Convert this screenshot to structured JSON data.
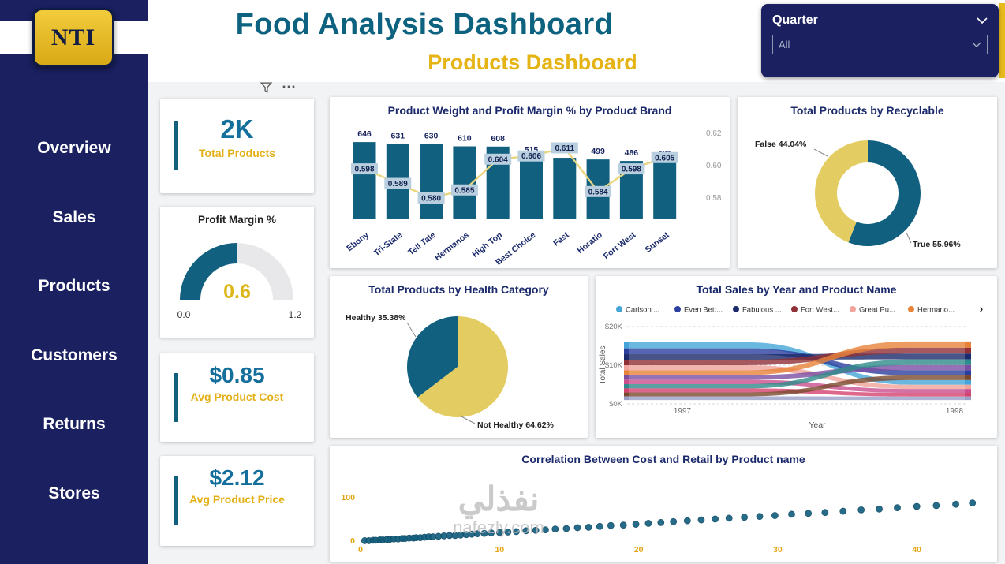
{
  "sidebar": {
    "logo_text": "NTI",
    "items": [
      {
        "label": "Overview"
      },
      {
        "label": "Sales"
      },
      {
        "label": "Products"
      },
      {
        "label": "Customers"
      },
      {
        "label": "Returns"
      },
      {
        "label": "Stores"
      }
    ]
  },
  "header": {
    "title": "Food Analysis Dashboard",
    "subtitle": "Products Dashboard"
  },
  "slicer": {
    "label": "Quarter",
    "value": "All"
  },
  "icons": {
    "filter": "funnel",
    "more_options": "⋯",
    "slicer_collapse": "chevron-down",
    "dropdown_arrow": "chevron-down",
    "legend_more": "›"
  },
  "kpi_cards": [
    {
      "value": "2K",
      "label": "Total Products"
    },
    {
      "value": "$0.85",
      "label": "Avg Product Cost"
    },
    {
      "value": "$2.12",
      "label": "Avg Product Price"
    }
  ],
  "gauge": {
    "title": "Profit Margin %",
    "value": "0.6",
    "min_label": "0.0",
    "max_label": "1.2",
    "fraction": 0.5
  },
  "watermark": {
    "line1": "نفذلي",
    "line2": "nafezly.com"
  },
  "colors": {
    "navy": "#1a2060",
    "teal": "#11607f",
    "gold": "#e3b117",
    "soft_gold": "#e3cd62",
    "line_gold": "#e9d67c",
    "kpi_value": "#156f9c",
    "chart_title": "#1b2a6b",
    "axis_gold": "#e4a513"
  },
  "chart_data": [
    {
      "id": "combo",
      "type": "bar",
      "title": "Product Weight and Profit Margin % by Product Brand",
      "categories": [
        "Ebony",
        "Tri-State",
        "Tell Tale",
        "Hermanos",
        "High Top",
        "Best Choice",
        "Fast",
        "Horatio",
        "Fort West",
        "Sunset"
      ],
      "bar_values": [
        646,
        631,
        630,
        610,
        608,
        515,
        513,
        499,
        486,
        481
      ],
      "line_values": [
        0.598,
        0.589,
        0.58,
        0.585,
        0.604,
        0.606,
        0.611,
        0.584,
        0.598,
        0.605
      ],
      "right_axis_ticks": [
        "0.62",
        "0.60",
        "0.58"
      ],
      "right_axis_range": [
        0.58,
        0.62
      ],
      "bar_color": "#11607f",
      "line_color": "#e9d67c"
    },
    {
      "id": "recyclable-donut",
      "type": "pie",
      "title": "Total Products by Recyclable",
      "donut": true,
      "slices": [
        {
          "label": "True",
          "pct": 55.96,
          "display": "True 55.96%",
          "color": "#11607f"
        },
        {
          "label": "False",
          "pct": 44.04,
          "display": "False 44.04%",
          "color": "#e3cd62"
        }
      ]
    },
    {
      "id": "health-pie",
      "type": "pie",
      "title": "Total Products by Health Category",
      "donut": false,
      "slices": [
        {
          "label": "Not Healthy",
          "pct": 64.62,
          "display": "Not Healthy 64.62%",
          "color": "#e3cd62"
        },
        {
          "label": "Healthy",
          "pct": 35.38,
          "display": "Healthy 35.38%",
          "color": "#11607f"
        }
      ]
    },
    {
      "id": "sales-ribbon",
      "type": "area",
      "title": "Total Sales by Year and Product Name",
      "xlabel": "Year",
      "ylabel": "Total Sales",
      "x_ticks": [
        "1997",
        "1998"
      ],
      "y_ticks": [
        "$20K",
        "$10K",
        "$0K"
      ],
      "ylim_k": [
        0,
        20
      ],
      "series": [
        {
          "name": "Carlson ...",
          "color": "#45a5d8",
          "values": [
            1.6,
            1.2
          ]
        },
        {
          "name": "Even Bett...",
          "color": "#2b3f9e",
          "values": [
            1.5,
            1.3
          ]
        },
        {
          "name": "Fabulous ...",
          "color": "#1b2a6b",
          "values": [
            1.45,
            1.5
          ]
        },
        {
          "name": "Fort West...",
          "color": "#8f2f36",
          "values": [
            1.4,
            1.55
          ]
        },
        {
          "name": "Great Pu...",
          "color": "#f0a49b",
          "values": [
            1.3,
            1.1
          ]
        },
        {
          "name": "Hermano...",
          "color": "#e8833a",
          "values": [
            1.25,
            1.6
          ]
        },
        {
          "name": "",
          "color": "#7a4fa3",
          "values": [
            1.2,
            1.35
          ]
        },
        {
          "name": "",
          "color": "#c94f8e",
          "values": [
            1.15,
            1.0
          ]
        },
        {
          "name": "",
          "color": "#2e8b8b",
          "values": [
            1.1,
            1.45
          ]
        },
        {
          "name": "",
          "color": "#d4426f",
          "values": [
            1.05,
            0.95
          ]
        },
        {
          "name": "",
          "color": "#7b4a2d",
          "values": [
            1.0,
            1.25
          ]
        },
        {
          "name": "",
          "color": "#9aa0c8",
          "values": [
            0.95,
            0.9
          ]
        }
      ]
    },
    {
      "id": "cost-retail-scatter",
      "type": "scatter",
      "title": "Correlation Between Cost and Retail by Product name",
      "x_ticks": [
        0,
        10,
        20,
        30,
        40
      ],
      "y_ticks": [
        0,
        100
      ],
      "point_color": "#14607f",
      "points": [
        [
          0.3,
          1
        ],
        [
          0.6,
          1
        ],
        [
          0.9,
          2
        ],
        [
          1.1,
          2
        ],
        [
          1.4,
          3
        ],
        [
          1.6,
          3
        ],
        [
          1.9,
          4
        ],
        [
          2.1,
          4
        ],
        [
          2.4,
          5
        ],
        [
          2.7,
          5
        ],
        [
          3,
          6
        ],
        [
          3.2,
          6
        ],
        [
          3.5,
          7
        ],
        [
          3.8,
          7
        ],
        [
          4,
          8
        ],
        [
          4.3,
          8
        ],
        [
          4.6,
          9
        ],
        [
          4.9,
          10
        ],
        [
          5.2,
          10
        ],
        [
          5.6,
          11
        ],
        [
          6,
          12
        ],
        [
          6.4,
          13
        ],
        [
          6.8,
          13
        ],
        [
          7.2,
          14
        ],
        [
          7.6,
          15
        ],
        [
          8,
          16
        ],
        [
          8.4,
          17
        ],
        [
          8.9,
          18
        ],
        [
          9.4,
          19
        ],
        [
          10,
          20
        ],
        [
          10.6,
          21
        ],
        [
          11.2,
          22
        ],
        [
          11.9,
          24
        ],
        [
          12.6,
          25
        ],
        [
          13.3,
          26
        ],
        [
          14,
          28
        ],
        [
          14.8,
          29
        ],
        [
          15.6,
          31
        ],
        [
          16.4,
          32
        ],
        [
          17.2,
          34
        ],
        [
          18,
          36
        ],
        [
          18.9,
          37
        ],
        [
          19.8,
          39
        ],
        [
          20.7,
          41
        ],
        [
          21.6,
          43
        ],
        [
          22.5,
          45
        ],
        [
          23.5,
          47
        ],
        [
          24.5,
          49
        ],
        [
          25.5,
          51
        ],
        [
          26.5,
          53
        ],
        [
          27.6,
          55
        ],
        [
          28.7,
          57
        ],
        [
          29.8,
          59
        ],
        [
          31,
          62
        ],
        [
          32.2,
          64
        ],
        [
          33.4,
          66
        ],
        [
          34.7,
          69
        ],
        [
          36,
          72
        ],
        [
          37.3,
          74
        ],
        [
          38.6,
          77
        ],
        [
          40,
          80
        ],
        [
          41.4,
          82
        ],
        [
          42.8,
          85
        ],
        [
          44,
          88
        ]
      ]
    }
  ]
}
